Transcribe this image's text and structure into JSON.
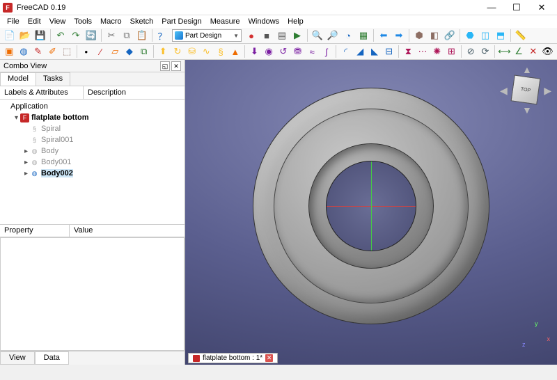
{
  "app": {
    "title": "FreeCAD 0.19",
    "window_buttons": {
      "min": "—",
      "max": "☐",
      "close": "✕"
    }
  },
  "menu": [
    "File",
    "Edit",
    "View",
    "Tools",
    "Macro",
    "Sketch",
    "Part Design",
    "Measure",
    "Windows",
    "Help"
  ],
  "workbench": {
    "label": "Part Design"
  },
  "toolbar1": {
    "groups": [
      [
        {
          "name": "new-icon",
          "glyph": "📄",
          "color": ""
        },
        {
          "name": "open-icon",
          "glyph": "📂",
          "color": ""
        },
        {
          "name": "save-icon",
          "glyph": "💾",
          "color": ""
        }
      ],
      [
        {
          "name": "undo-icon",
          "glyph": "↶",
          "color": "#2e7d32"
        },
        {
          "name": "redo-icon",
          "glyph": "↷",
          "color": "#2e7d32"
        },
        {
          "name": "refresh-icon",
          "glyph": "🔄",
          "color": ""
        }
      ],
      [
        {
          "name": "cut-icon",
          "glyph": "✂",
          "color": "#777"
        },
        {
          "name": "copy-icon",
          "glyph": "⧉",
          "color": "#777"
        },
        {
          "name": "paste-icon",
          "glyph": "📋",
          "color": ""
        }
      ],
      [
        {
          "name": "whatsthis-icon",
          "glyph": "？",
          "color": "#1565c0"
        }
      ]
    ],
    "right_groups": [
      [
        {
          "name": "record-macro-icon",
          "glyph": "●",
          "color": "#d32f2f"
        },
        {
          "name": "stop-macro-icon",
          "glyph": "■",
          "color": "#555"
        },
        {
          "name": "macros-icon",
          "glyph": "▤",
          "color": "#555"
        },
        {
          "name": "execute-macro-icon",
          "glyph": "▶",
          "color": "#2e7d32"
        }
      ],
      [
        {
          "name": "fit-all-icon",
          "glyph": "🔍",
          "color": ""
        },
        {
          "name": "fit-selection-icon",
          "glyph": "🔎",
          "color": ""
        },
        {
          "name": "draw-style-icon",
          "glyph": "◔",
          "color": "#1565c0"
        },
        {
          "name": "bounding-box-icon",
          "glyph": "▦",
          "color": "#2e7d32"
        }
      ],
      [
        {
          "name": "nav-back-icon",
          "glyph": "⬅",
          "color": "#1e88e5"
        },
        {
          "name": "nav-forward-icon",
          "glyph": "➡",
          "color": "#1e88e5"
        }
      ],
      [
        {
          "name": "isometric-icon",
          "glyph": "⬢",
          "color": "#8d6e63"
        },
        {
          "name": "front-icon",
          "glyph": "◧",
          "color": "#8d6e63"
        },
        {
          "name": "link-icon",
          "glyph": "🔗",
          "color": "#1565c0"
        }
      ],
      [
        {
          "name": "view-iso-icon",
          "glyph": "⬣",
          "color": "#29b6f6"
        },
        {
          "name": "view-front-icon",
          "glyph": "◫",
          "color": "#29b6f6"
        },
        {
          "name": "view-top-icon",
          "glyph": "⬒",
          "color": "#29b6f6"
        }
      ],
      [
        {
          "name": "measure-icon",
          "glyph": "📏",
          "color": ""
        }
      ]
    ]
  },
  "toolbar2": {
    "groups": [
      [
        {
          "name": "part-box-icon",
          "glyph": "▣",
          "color": "#ef6c00"
        },
        {
          "name": "body-icon",
          "glyph": "◍",
          "color": "#1565c0"
        },
        {
          "name": "sketch-icon",
          "glyph": "✎",
          "color": "#c62828"
        },
        {
          "name": "edit-sketch-icon",
          "glyph": "✐",
          "color": "#ef6c00"
        },
        {
          "name": "map-sketch-icon",
          "glyph": "⬚",
          "color": "#8d6e63"
        }
      ],
      [
        {
          "name": "datum-point-icon",
          "glyph": "•",
          "color": "#000"
        },
        {
          "name": "datum-line-icon",
          "glyph": "∕",
          "color": "#c62828"
        },
        {
          "name": "datum-plane-icon",
          "glyph": "▱",
          "color": "#ef6c00"
        },
        {
          "name": "shapebinder-icon",
          "glyph": "◆",
          "color": "#1565c0"
        },
        {
          "name": "clone-icon",
          "glyph": "⧉",
          "color": "#2e7d32"
        }
      ],
      [
        {
          "name": "pad-icon",
          "glyph": "⬆",
          "color": "#fbc02d"
        },
        {
          "name": "revolution-icon",
          "glyph": "↻",
          "color": "#fbc02d"
        },
        {
          "name": "loft-icon",
          "glyph": "⛁",
          "color": "#fbc02d"
        },
        {
          "name": "sweep-icon",
          "glyph": "∿",
          "color": "#fbc02d"
        },
        {
          "name": "helix-icon",
          "glyph": "§",
          "color": "#fbc02d"
        },
        {
          "name": "pad2-icon",
          "glyph": "▲",
          "color": "#ef6c00"
        }
      ],
      [
        {
          "name": "pocket-icon",
          "glyph": "⬇",
          "color": "#7b1fa2"
        },
        {
          "name": "hole-icon",
          "glyph": "◉",
          "color": "#7b1fa2"
        },
        {
          "name": "groove-icon",
          "glyph": "↺",
          "color": "#7b1fa2"
        },
        {
          "name": "sub-loft-icon",
          "glyph": "⛃",
          "color": "#7b1fa2"
        },
        {
          "name": "sub-sweep-icon",
          "glyph": "≈",
          "color": "#7b1fa2"
        },
        {
          "name": "sub-helix-icon",
          "glyph": "ʃ",
          "color": "#7b1fa2"
        }
      ],
      [
        {
          "name": "fillet-icon",
          "glyph": "◜",
          "color": "#1565c0"
        },
        {
          "name": "chamfer-icon",
          "glyph": "◢",
          "color": "#1565c0"
        },
        {
          "name": "draft-icon",
          "glyph": "◣",
          "color": "#1565c0"
        },
        {
          "name": "thickness-icon",
          "glyph": "⊟",
          "color": "#1565c0"
        }
      ],
      [
        {
          "name": "mirror-icon",
          "glyph": "⧗",
          "color": "#ad1457"
        },
        {
          "name": "linear-pattern-icon",
          "glyph": "⋯",
          "color": "#ad1457"
        },
        {
          "name": "polar-pattern-icon",
          "glyph": "✺",
          "color": "#ad1457"
        },
        {
          "name": "multi-transform-icon",
          "glyph": "⊞",
          "color": "#ad1457"
        }
      ],
      [
        {
          "name": "boolean-icon",
          "glyph": "⊘",
          "color": "#455a64"
        },
        {
          "name": "migrate-icon",
          "glyph": "⟳",
          "color": "#455a64"
        }
      ],
      [
        {
          "name": "measure-linear-icon",
          "glyph": "⟷",
          "color": "#2e7d32"
        },
        {
          "name": "measure-angular-icon",
          "glyph": "∠",
          "color": "#2e7d32"
        },
        {
          "name": "measure-clear-icon",
          "glyph": "✕",
          "color": "#c62828"
        },
        {
          "name": "measure-toggle-icon",
          "glyph": "👁",
          "color": ""
        }
      ]
    ]
  },
  "combo": {
    "title": "Combo View",
    "tabs": [
      "Model",
      "Tasks"
    ],
    "active_tab": 0,
    "labels_header": [
      "Labels & Attributes",
      "Description"
    ],
    "tree": [
      {
        "depth": 0,
        "exp": "",
        "icon": "",
        "label": "Application",
        "bold": false,
        "gray": false,
        "selected": false,
        "icon_bg": ""
      },
      {
        "depth": 1,
        "exp": "▾",
        "icon": "F",
        "label": "flatplate bottom",
        "bold": true,
        "gray": false,
        "selected": false,
        "icon_bg": "#c62828",
        "icon_fg": "#fff"
      },
      {
        "depth": 2,
        "exp": "",
        "icon": "§",
        "label": "Spiral",
        "bold": false,
        "gray": true,
        "selected": false,
        "icon_bg": "",
        "icon_fg": "#aaa"
      },
      {
        "depth": 2,
        "exp": "",
        "icon": "§",
        "label": "Spiral001",
        "bold": false,
        "gray": true,
        "selected": false,
        "icon_bg": "",
        "icon_fg": "#aaa"
      },
      {
        "depth": 2,
        "exp": "▸",
        "icon": "◍",
        "label": "Body",
        "bold": false,
        "gray": true,
        "selected": false,
        "icon_bg": "",
        "icon_fg": "#aaa"
      },
      {
        "depth": 2,
        "exp": "▸",
        "icon": "◍",
        "label": "Body001",
        "bold": false,
        "gray": true,
        "selected": false,
        "icon_bg": "",
        "icon_fg": "#aaa"
      },
      {
        "depth": 2,
        "exp": "▸",
        "icon": "◍",
        "label": "Body002",
        "bold": true,
        "gray": false,
        "selected": true,
        "icon_bg": "",
        "icon_fg": "#1565c0"
      }
    ],
    "props_header": [
      "Property",
      "Value"
    ],
    "bottom_tabs": [
      "View",
      "Data"
    ],
    "bottom_active": 1
  },
  "viewport": {
    "navcube_face": "TOP",
    "axes": {
      "x": "x",
      "y": "y",
      "z": "z"
    },
    "doc_tab": "flatplate bottom : 1*",
    "colors": {
      "bg_top": "#8488b4",
      "bg_bottom": "#3a3d64",
      "part_light": "#d0d0d0",
      "part_dark": "#707070"
    }
  }
}
